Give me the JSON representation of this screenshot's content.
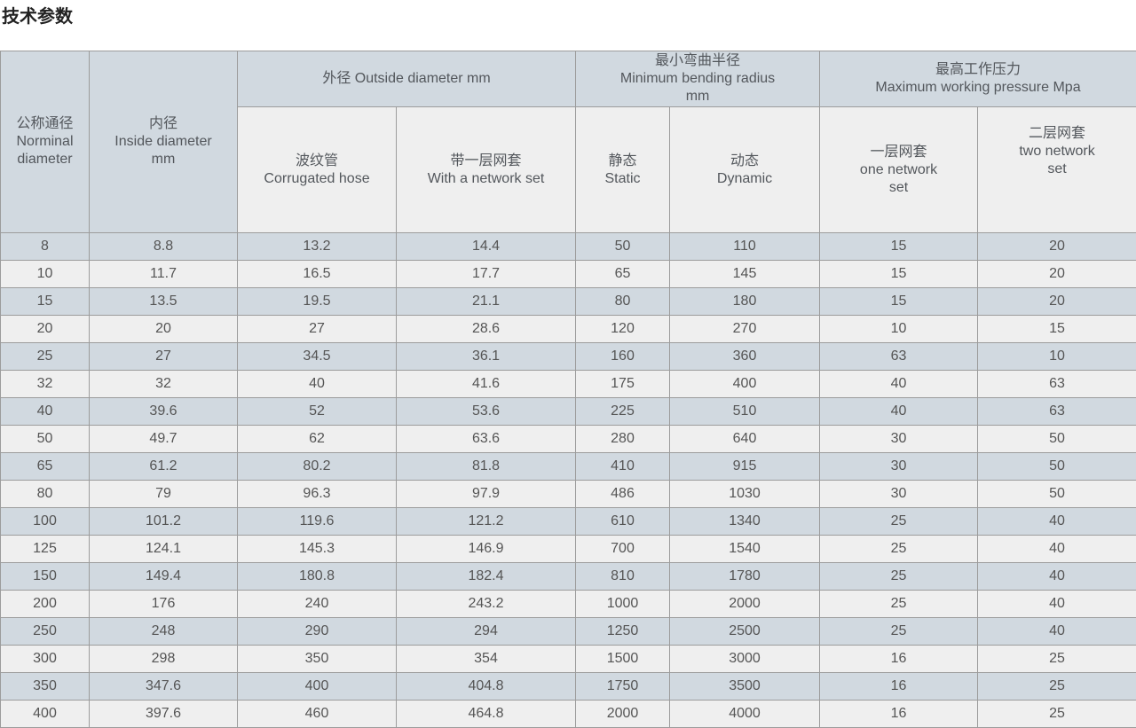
{
  "title": "技术参数",
  "colors": {
    "stripe_blue": "#d1d9e0",
    "stripe_light": "#efefef",
    "border": "#9c9c9c",
    "title_text": "#222222",
    "header_text": "#53575c",
    "cell_text": "#555555"
  },
  "table": {
    "header": {
      "nominal_diameter": "公称通径\nNorminal\ndiameter",
      "inside_diameter": "内径\nInside diameter\nmm",
      "outside_diameter_group": "外径 Outside diameter mm",
      "corrugated_hose": "波纹管\nCorrugated hose",
      "with_network_set": "带一层网套\nWith a network set",
      "min_bending_radius_group": "最小弯曲半径\nMinimum bending radius\nmm",
      "static": "静态\nStatic",
      "dynamic": "动态\nDynamic",
      "max_working_pressure_group": "最高工作压力\nMaximum working pressure Mpa",
      "one_network_set": "一层网套\none network\nset",
      "two_network_set": "二层网套\ntwo network\nset"
    },
    "rows": [
      [
        "8",
        "8.8",
        "13.2",
        "14.4",
        "50",
        "110",
        "15",
        "20"
      ],
      [
        "10",
        "11.7",
        "16.5",
        "17.7",
        "65",
        "145",
        "15",
        "20"
      ],
      [
        "15",
        "13.5",
        "19.5",
        "21.1",
        "80",
        "180",
        "15",
        "20"
      ],
      [
        "20",
        "20",
        "27",
        "28.6",
        "120",
        "270",
        "10",
        "15"
      ],
      [
        "25",
        "27",
        "34.5",
        "36.1",
        "160",
        "360",
        "63",
        "10"
      ],
      [
        "32",
        "32",
        "40",
        "41.6",
        "175",
        "400",
        "40",
        "63"
      ],
      [
        "40",
        "39.6",
        "52",
        "53.6",
        "225",
        "510",
        "40",
        "63"
      ],
      [
        "50",
        "49.7",
        "62",
        "63.6",
        "280",
        "640",
        "30",
        "50"
      ],
      [
        "65",
        "61.2",
        "80.2",
        "81.8",
        "410",
        "915",
        "30",
        "50"
      ],
      [
        "80",
        "79",
        "96.3",
        "97.9",
        "486",
        "1030",
        "30",
        "50"
      ],
      [
        "100",
        "101.2",
        "119.6",
        "121.2",
        "610",
        "1340",
        "25",
        "40"
      ],
      [
        "125",
        "124.1",
        "145.3",
        "146.9",
        "700",
        "1540",
        "25",
        "40"
      ],
      [
        "150",
        "149.4",
        "180.8",
        "182.4",
        "810",
        "1780",
        "25",
        "40"
      ],
      [
        "200",
        "176",
        "240",
        "243.2",
        "1000",
        "2000",
        "25",
        "40"
      ],
      [
        "250",
        "248",
        "290",
        "294",
        "1250",
        "2500",
        "25",
        "40"
      ],
      [
        "300",
        "298",
        "350",
        "354",
        "1500",
        "3000",
        "16",
        "25"
      ],
      [
        "350",
        "347.6",
        "400",
        "404.8",
        "1750",
        "3500",
        "16",
        "25"
      ],
      [
        "400",
        "397.6",
        "460",
        "464.8",
        "2000",
        "4000",
        "16",
        "25"
      ]
    ]
  }
}
